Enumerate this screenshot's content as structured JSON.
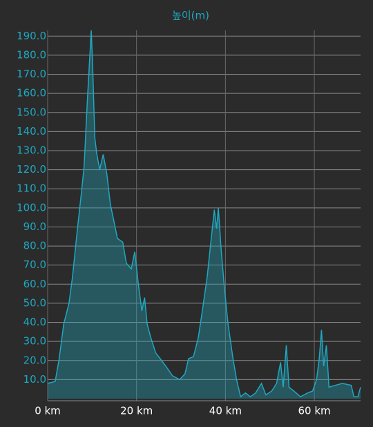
{
  "chart_data": {
    "type": "area",
    "title": "높이(m)",
    "x": [
      0,
      1.7,
      2.6,
      3.6,
      4.8,
      5.6,
      6.7,
      7.6,
      8.2,
      8.9,
      9.5,
      9.8,
      10.1,
      10.6,
      11.0,
      11.7,
      12.5,
      13.3,
      14.1,
      14.9,
      15.7,
      16.9,
      17.7,
      18.8,
      19.6,
      20.4,
      21.2,
      21.8,
      22.4,
      23.2,
      24.3,
      25.3,
      26.6,
      28.1,
      29.7,
      30.9,
      31.7,
      32.8,
      33.9,
      34.8,
      35.9,
      36.9,
      37.5,
      38.0,
      38.4,
      39.0,
      39.8,
      40.6,
      41.7,
      42.5,
      43.4,
      44.5,
      45.6,
      46.8,
      48.1,
      49.1,
      50.4,
      51.5,
      52.4,
      53.0,
      53.7,
      54.3,
      55.4,
      56.9,
      58.5,
      59.6,
      60.5,
      61.1,
      61.6,
      62.1,
      62.7,
      63.3,
      64.7,
      66.3,
      68.3,
      68.9,
      69.8,
      70.4
    ],
    "y": [
      8,
      9,
      21,
      39,
      50,
      64,
      89,
      108,
      122,
      155,
      180,
      193,
      176,
      137,
      129,
      120,
      128,
      118,
      102,
      93,
      84,
      82,
      71,
      68,
      77,
      60,
      46,
      53,
      39,
      32,
      24,
      21,
      17,
      12,
      10,
      13,
      21,
      22,
      32,
      46,
      64,
      86,
      99,
      89,
      100,
      79,
      57,
      39,
      21,
      10,
      1,
      3,
      1,
      3,
      8,
      2,
      4,
      8,
      19,
      6,
      28,
      6,
      4,
      1,
      3,
      4,
      10,
      21,
      36,
      17,
      28,
      6,
      7,
      8,
      7,
      1,
      1,
      6
    ],
    "color": "#1fa8c0",
    "xlim": [
      0,
      70.4
    ],
    "ylim": [
      0,
      193
    ],
    "xticks": [
      {
        "value": 0,
        "label": "0 km"
      },
      {
        "value": 20,
        "label": "20 km"
      },
      {
        "value": 40,
        "label": "40 km"
      },
      {
        "value": 60,
        "label": "60 km"
      }
    ],
    "yticks": [
      {
        "value": 10,
        "label": "10.0"
      },
      {
        "value": 20,
        "label": "20.0"
      },
      {
        "value": 30,
        "label": "30.0"
      },
      {
        "value": 40,
        "label": "40.0"
      },
      {
        "value": 50,
        "label": "50.0"
      },
      {
        "value": 60,
        "label": "60.0"
      },
      {
        "value": 70,
        "label": "70.0"
      },
      {
        "value": 80,
        "label": "80.0"
      },
      {
        "value": 90,
        "label": "90.0"
      },
      {
        "value": 100,
        "label": "100.0"
      },
      {
        "value": 110,
        "label": "110.0"
      },
      {
        "value": 120,
        "label": "120.0"
      },
      {
        "value": 130,
        "label": "130.0"
      },
      {
        "value": 140,
        "label": "140.0"
      },
      {
        "value": 150,
        "label": "150.0"
      },
      {
        "value": 160,
        "label": "160.0"
      },
      {
        "value": 170,
        "label": "170.0"
      },
      {
        "value": 180,
        "label": "180.0"
      },
      {
        "value": 190,
        "label": "190.0"
      }
    ],
    "grid": true
  }
}
